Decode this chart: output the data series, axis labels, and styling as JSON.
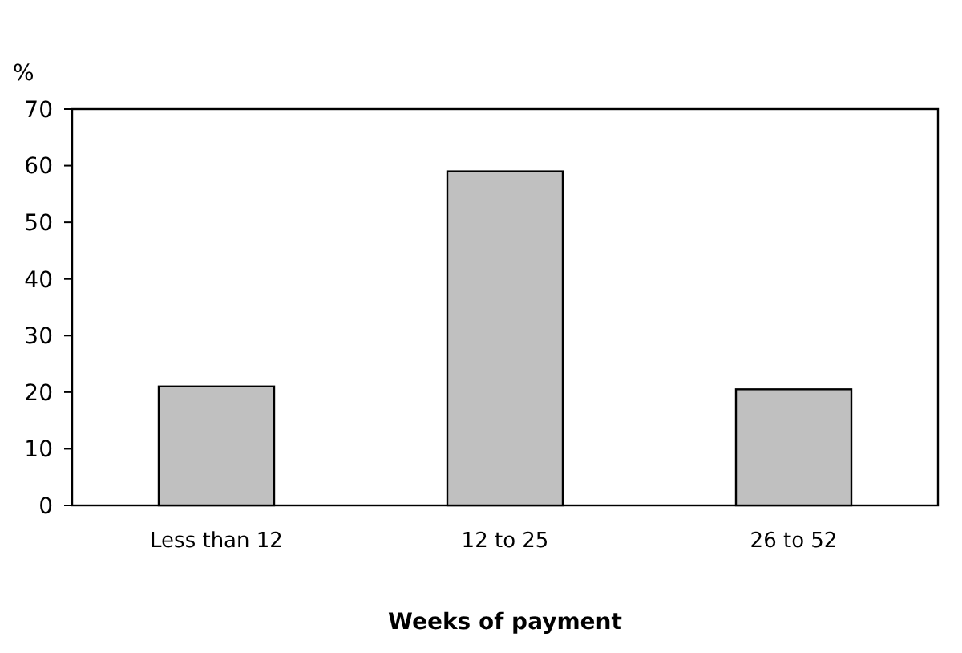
{
  "chart_data": {
    "type": "bar",
    "ylabel": "%",
    "xlabel": "Weeks of payment",
    "categories": [
      "Less than 12",
      "12 to 25",
      "26 to 52"
    ],
    "values": [
      21,
      59,
      20.5
    ],
    "color": "#c0c0c0",
    "ylim": [
      0,
      70
    ],
    "yticks": [
      0,
      10,
      20,
      30,
      40,
      50,
      60,
      70
    ],
    "grid": false
  }
}
